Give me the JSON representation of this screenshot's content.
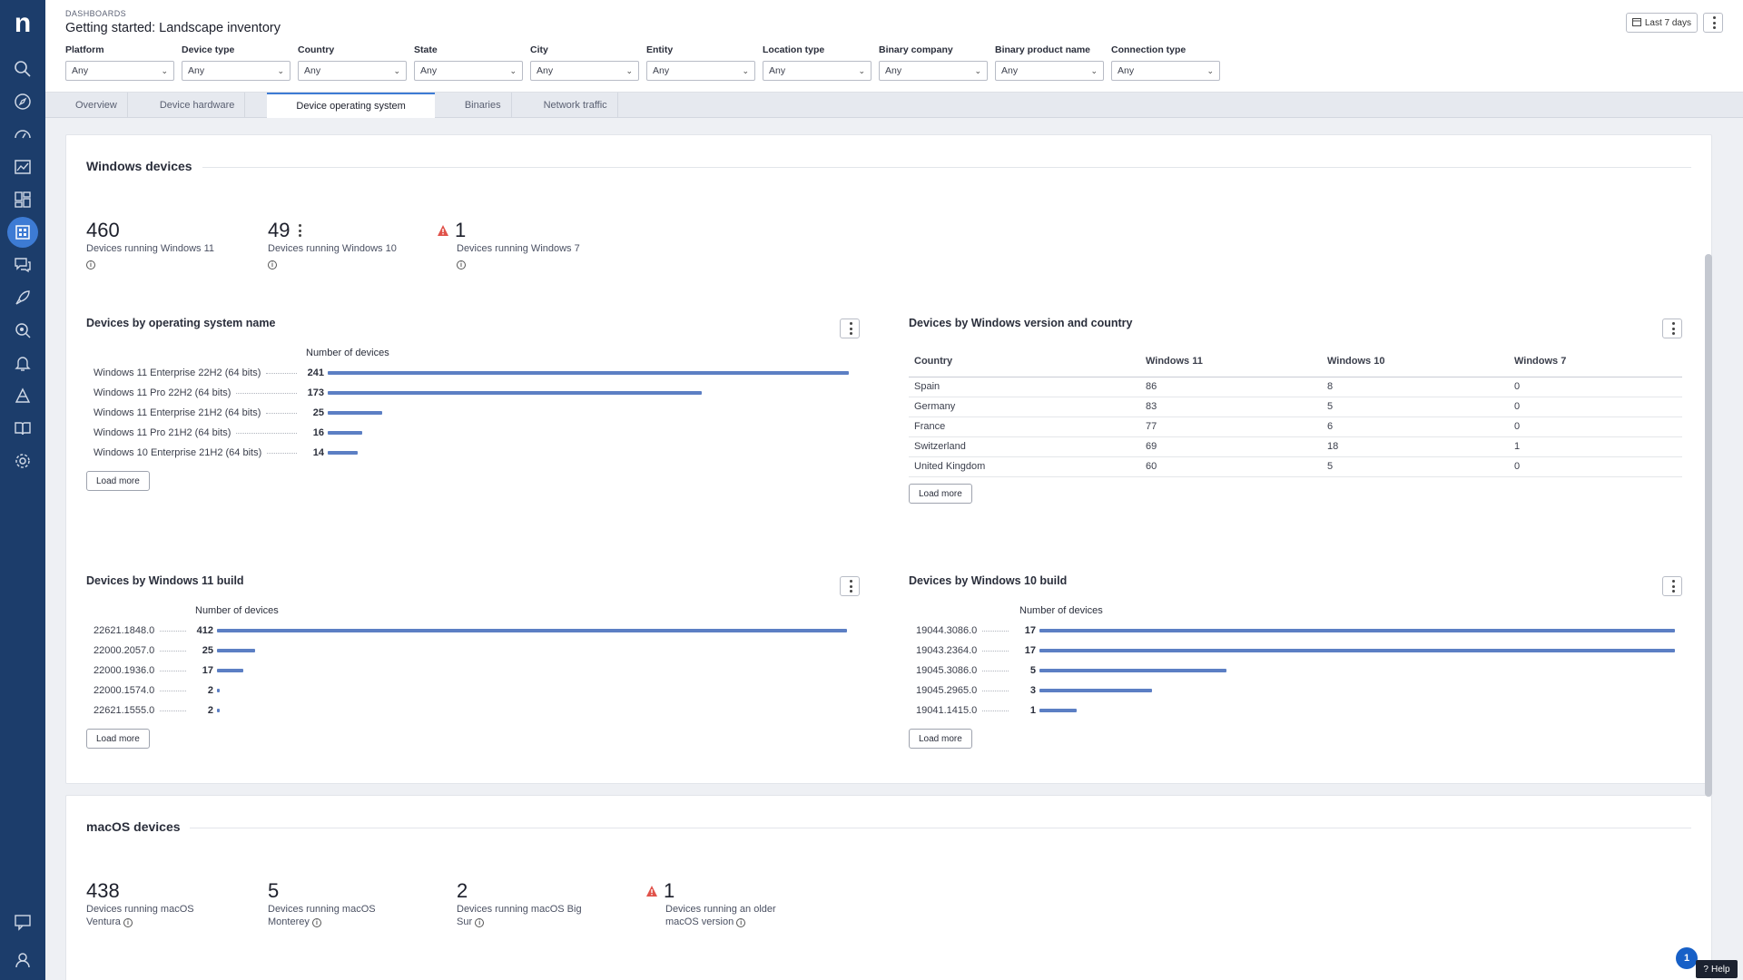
{
  "app": {
    "logo": "n"
  },
  "header": {
    "breadcrumb": "DASHBOARDS",
    "title": "Getting started: Landscape inventory",
    "timeframe": "Last 7 days"
  },
  "filters": [
    {
      "label": "Platform",
      "value": "Any"
    },
    {
      "label": "Device type",
      "value": "Any"
    },
    {
      "label": "Country",
      "value": "Any"
    },
    {
      "label": "State",
      "value": "Any"
    },
    {
      "label": "City",
      "value": "Any"
    },
    {
      "label": "Entity",
      "value": "Any"
    },
    {
      "label": "Location type",
      "value": "Any"
    },
    {
      "label": "Binary company",
      "value": "Any"
    },
    {
      "label": "Binary product name",
      "value": "Any"
    },
    {
      "label": "Connection type",
      "value": "Any"
    }
  ],
  "tabs": [
    "Overview",
    "Device hardware",
    "Device operating system",
    "Binaries",
    "Network traffic"
  ],
  "active_tab": "Device operating system",
  "windows": {
    "title": "Windows devices",
    "kpis": [
      {
        "value": "460",
        "label": "Devices running Windows 11"
      },
      {
        "value": "49",
        "label": "Devices running Windows 10"
      },
      {
        "value": "1",
        "label": "Devices running Windows 7"
      }
    ],
    "os_name": {
      "title": "Devices by operating system name",
      "header": "Number of devices",
      "load_more": "Load more",
      "rows": [
        {
          "label": "Windows 11 Enterprise 22H2 (64 bits)",
          "value": 241
        },
        {
          "label": "Windows 11 Pro 22H2 (64 bits)",
          "value": 173
        },
        {
          "label": "Windows 11 Enterprise 21H2 (64 bits)",
          "value": 25
        },
        {
          "label": "Windows 11 Pro 21H2 (64 bits)",
          "value": 16
        },
        {
          "label": "Windows 10 Enterprise 21H2 (64 bits)",
          "value": 14
        }
      ]
    },
    "version_country": {
      "title": "Devices by Windows version and country",
      "columns": [
        "Country",
        "Windows 11",
        "Windows 10",
        "Windows 7"
      ],
      "rows": [
        [
          "Spain",
          "86",
          "8",
          "0"
        ],
        [
          "Germany",
          "83",
          "5",
          "0"
        ],
        [
          "France",
          "77",
          "6",
          "0"
        ],
        [
          "Switzerland",
          "69",
          "18",
          "1"
        ],
        [
          "United Kingdom",
          "60",
          "5",
          "0"
        ]
      ],
      "load_more": "Load more"
    },
    "win11_build": {
      "title": "Devices by Windows 11 build",
      "header": "Number of devices",
      "load_more": "Load more",
      "rows": [
        {
          "label": "22621.1848.0",
          "value": 412
        },
        {
          "label": "22000.2057.0",
          "value": 25
        },
        {
          "label": "22000.1936.0",
          "value": 17
        },
        {
          "label": "22000.1574.0",
          "value": 2
        },
        {
          "label": "22621.1555.0",
          "value": 2
        }
      ]
    },
    "win10_build": {
      "title": "Devices by Windows 10 build",
      "header": "Number of devices",
      "load_more": "Load more",
      "rows": [
        {
          "label": "19044.3086.0",
          "value": 17
        },
        {
          "label": "19043.2364.0",
          "value": 17
        },
        {
          "label": "19045.3086.0",
          "value": 5
        },
        {
          "label": "19045.2965.0",
          "value": 3
        },
        {
          "label": "19041.1415.0",
          "value": 1
        }
      ]
    }
  },
  "macos": {
    "title": "macOS devices",
    "kpis": [
      {
        "value": "438",
        "label_1": "Devices running macOS",
        "label_2": "Ventura"
      },
      {
        "value": "5",
        "label_1": "Devices running macOS",
        "label_2": "Monterey"
      },
      {
        "value": "2",
        "label_1": "Devices running macOS Big",
        "label_2": "Sur"
      },
      {
        "value": "1",
        "label_1": "Devices running an older",
        "label_2": "macOS version"
      }
    ]
  },
  "footer": {
    "notifications": "1",
    "help": "Help"
  },
  "colors": {
    "sidebar": "#1c3d6b",
    "accent": "#3d7bd4",
    "bar": "#5c7fc4",
    "warning": "#e0524a"
  }
}
